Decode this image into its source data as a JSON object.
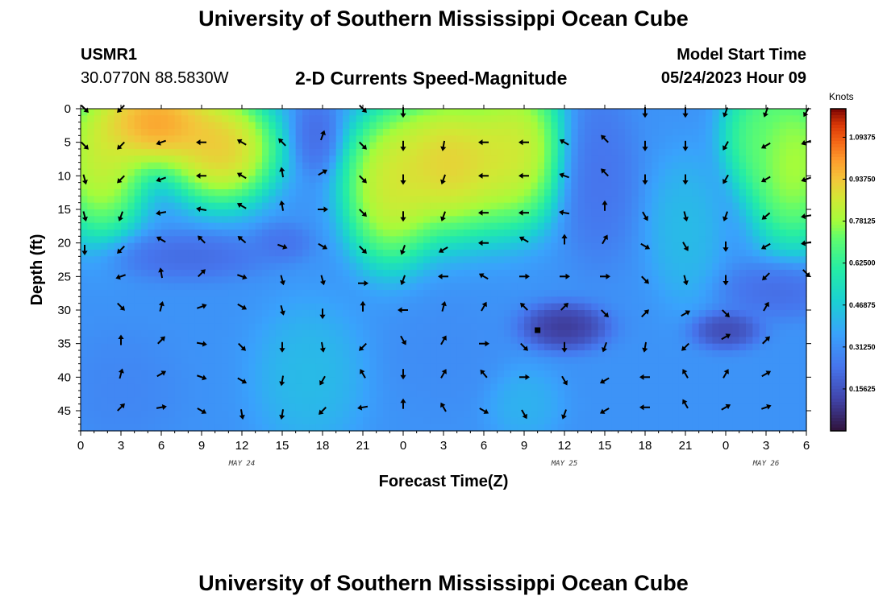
{
  "header": {
    "title": "University of Southern Mississippi Ocean Cube",
    "station_id": "USMR1",
    "station_coords": "30.0770N  88.5830W",
    "product": "2-D Currents Speed-Magnitude",
    "model_start_label": "Model Start Time",
    "model_start_value": "05/24/2023 Hour 09"
  },
  "footer": {
    "title": "University of Southern Mississippi Ocean Cube"
  },
  "chart_data": {
    "type": "heatmap",
    "title": "2-D Currents Speed-Magnitude",
    "xlabel": "Forecast Time(Z)",
    "ylabel": "Depth (ft)",
    "x_tick_labels": [
      "0",
      "3",
      "6",
      "9",
      "12",
      "15",
      "18",
      "21",
      "0",
      "3",
      "6",
      "9",
      "12",
      "15",
      "18",
      "21",
      "0",
      "3",
      "6"
    ],
    "x_hours": [
      0,
      3,
      6,
      9,
      12,
      15,
      18,
      21,
      24,
      27,
      30,
      33,
      36,
      39,
      42,
      45,
      48,
      51,
      54
    ],
    "xlim": [
      0,
      54
    ],
    "date_labels": [
      {
        "text": "MAY 24",
        "hour": 12
      },
      {
        "text": "MAY 25",
        "hour": 36
      },
      {
        "text": "MAY 26",
        "hour": 51
      }
    ],
    "y_ticks": [
      0,
      5,
      10,
      15,
      20,
      25,
      30,
      35,
      40,
      45
    ],
    "ylim": [
      0,
      48
    ],
    "colorbar": {
      "unit": "Knots",
      "min": 0,
      "max": 1.2,
      "tick_values": [
        1.09375,
        0.9375,
        0.78125,
        0.625,
        0.46875,
        0.3125,
        0.15625
      ],
      "tick_labels": [
        "1.09375",
        "0.93750",
        "0.78125",
        "0.62500",
        "0.46875",
        "0.31250",
        "0.15625"
      ]
    },
    "speed_features": [
      {
        "hour": 5.5,
        "depth": 2,
        "value": 1.15,
        "sx": 3.5,
        "sy": 5
      },
      {
        "hour": 1.5,
        "depth": 8,
        "value": 0.95,
        "sx": 2.5,
        "sy": 8
      },
      {
        "hour": 10.5,
        "depth": 6,
        "value": 1.05,
        "sx": 3,
        "sy": 6
      },
      {
        "hour": 27.5,
        "depth": 8,
        "value": 1.05,
        "sx": 4,
        "sy": 8
      },
      {
        "hour": 23.0,
        "depth": 12,
        "value": 0.95,
        "sx": 2.5,
        "sy": 8
      },
      {
        "hour": 32.5,
        "depth": 6,
        "value": 0.95,
        "sx": 2.5,
        "sy": 8
      },
      {
        "hour": 53,
        "depth": 8,
        "value": 0.9,
        "sx": 2.5,
        "sy": 9
      },
      {
        "hour": 50.5,
        "depth": 4,
        "value": 0.75,
        "sx": 2,
        "sy": 6
      },
      {
        "hour": 17.5,
        "depth": 4,
        "value": 0.2,
        "sx": 1.2,
        "sy": 4
      },
      {
        "hour": 38.5,
        "depth": 10,
        "value": 0.22,
        "sx": 2,
        "sy": 9
      },
      {
        "hour": 8,
        "depth": 22,
        "value": 0.2,
        "sx": 4,
        "sy": 2.5
      },
      {
        "hour": 15,
        "depth": 20,
        "value": 0.22,
        "sx": 1.5,
        "sy": 2
      },
      {
        "hour": 36,
        "depth": 32.5,
        "value": 0.05,
        "sx": 2.3,
        "sy": 2.5
      },
      {
        "hour": 48,
        "depth": 33,
        "value": 0.1,
        "sx": 1.8,
        "sy": 2
      },
      {
        "hour": 52,
        "depth": 27,
        "value": 0.2,
        "sx": 3,
        "sy": 3
      },
      {
        "hour": 17,
        "depth": 40,
        "value": 0.45,
        "sx": 3,
        "sy": 8
      },
      {
        "hour": 33,
        "depth": 44,
        "value": 0.42,
        "sx": 2,
        "sy": 4
      },
      {
        "hour": 27,
        "depth": 37,
        "value": 0.3,
        "sx": 3,
        "sy": 6
      },
      {
        "hour": 45,
        "depth": 18,
        "value": 0.45,
        "sx": 2,
        "sy": 8
      },
      {
        "hour": 3,
        "depth": 42,
        "value": 0.28,
        "sx": 3,
        "sy": 6
      }
    ],
    "vectors": [
      {
        "hour": 0.3,
        "depth": 0,
        "dir": 135
      },
      {
        "hour": 3,
        "depth": 0,
        "dir": 225
      },
      {
        "hour": 21,
        "depth": 0,
        "dir": 135
      },
      {
        "hour": 24,
        "depth": 0.5,
        "dir": 180
      },
      {
        "hour": 42,
        "depth": 0.5,
        "dir": 180
      },
      {
        "hour": 45,
        "depth": 0.5,
        "dir": 180
      },
      {
        "hour": 48,
        "depth": 0.5,
        "dir": 200
      },
      {
        "hour": 51,
        "depth": 0.5,
        "dir": 200
      },
      {
        "hour": 54,
        "depth": 0.5,
        "dir": 210
      },
      {
        "hour": 0.3,
        "depth": 5.5,
        "dir": 135
      },
      {
        "hour": 3,
        "depth": 5.5,
        "dir": 225
      },
      {
        "hour": 6,
        "depth": 5,
        "dir": 250
      },
      {
        "hour": 9,
        "depth": 5,
        "dir": 270
      },
      {
        "hour": 12,
        "depth": 5,
        "dir": 300
      },
      {
        "hour": 15,
        "depth": 5,
        "dir": 315
      },
      {
        "hour": 18,
        "depth": 4,
        "dir": 20
      },
      {
        "hour": 21,
        "depth": 5.5,
        "dir": 135
      },
      {
        "hour": 24,
        "depth": 5.5,
        "dir": 180
      },
      {
        "hour": 27,
        "depth": 5.5,
        "dir": 190
      },
      {
        "hour": 30,
        "depth": 5,
        "dir": 270
      },
      {
        "hour": 33,
        "depth": 5,
        "dir": 270
      },
      {
        "hour": 36,
        "depth": 5,
        "dir": 300
      },
      {
        "hour": 39,
        "depth": 4.5,
        "dir": 315
      },
      {
        "hour": 42,
        "depth": 5.5,
        "dir": 180
      },
      {
        "hour": 45,
        "depth": 5.5,
        "dir": 180
      },
      {
        "hour": 48,
        "depth": 5.5,
        "dir": 210
      },
      {
        "hour": 51,
        "depth": 5.5,
        "dir": 240
      },
      {
        "hour": 54,
        "depth": 5,
        "dir": 250
      },
      {
        "hour": 0.3,
        "depth": 10.5,
        "dir": 165
      },
      {
        "hour": 3,
        "depth": 10.5,
        "dir": 225
      },
      {
        "hour": 6,
        "depth": 10.5,
        "dir": 250
      },
      {
        "hour": 9,
        "depth": 10,
        "dir": 270
      },
      {
        "hour": 12,
        "depth": 10,
        "dir": 300
      },
      {
        "hour": 15,
        "depth": 9.5,
        "dir": 350
      },
      {
        "hour": 18,
        "depth": 9.5,
        "dir": 60
      },
      {
        "hour": 21,
        "depth": 10.5,
        "dir": 135
      },
      {
        "hour": 24,
        "depth": 10.5,
        "dir": 180
      },
      {
        "hour": 27,
        "depth": 10.5,
        "dir": 200
      },
      {
        "hour": 30,
        "depth": 10,
        "dir": 270
      },
      {
        "hour": 33,
        "depth": 10,
        "dir": 270
      },
      {
        "hour": 36,
        "depth": 10,
        "dir": 290
      },
      {
        "hour": 39,
        "depth": 9.5,
        "dir": 315
      },
      {
        "hour": 42,
        "depth": 10.5,
        "dir": 180
      },
      {
        "hour": 45,
        "depth": 10.5,
        "dir": 180
      },
      {
        "hour": 48,
        "depth": 10.5,
        "dir": 210
      },
      {
        "hour": 51,
        "depth": 10.5,
        "dir": 240
      },
      {
        "hour": 54,
        "depth": 10.5,
        "dir": 250
      },
      {
        "hour": 0.3,
        "depth": 16,
        "dir": 165
      },
      {
        "hour": 3,
        "depth": 16,
        "dir": 200
      },
      {
        "hour": 6,
        "depth": 15.5,
        "dir": 260
      },
      {
        "hour": 9,
        "depth": 15,
        "dir": 280
      },
      {
        "hour": 12,
        "depth": 14.5,
        "dir": 300
      },
      {
        "hour": 15,
        "depth": 14.5,
        "dir": 350
      },
      {
        "hour": 18,
        "depth": 15,
        "dir": 90
      },
      {
        "hour": 21,
        "depth": 15.5,
        "dir": 135
      },
      {
        "hour": 24,
        "depth": 16,
        "dir": 180
      },
      {
        "hour": 27,
        "depth": 16,
        "dir": 200
      },
      {
        "hour": 30,
        "depth": 15.5,
        "dir": 270
      },
      {
        "hour": 33,
        "depth": 15.5,
        "dir": 270
      },
      {
        "hour": 36,
        "depth": 15.5,
        "dir": 280
      },
      {
        "hour": 39,
        "depth": 14.5,
        "dir": 0
      },
      {
        "hour": 42,
        "depth": 16,
        "dir": 150
      },
      {
        "hour": 45,
        "depth": 16,
        "dir": 165
      },
      {
        "hour": 48,
        "depth": 16,
        "dir": 200
      },
      {
        "hour": 51,
        "depth": 16,
        "dir": 230
      },
      {
        "hour": 54,
        "depth": 16,
        "dir": 260
      },
      {
        "hour": 0.3,
        "depth": 21,
        "dir": 180
      },
      {
        "hour": 3,
        "depth": 21,
        "dir": 225
      },
      {
        "hour": 6,
        "depth": 19.5,
        "dir": 300
      },
      {
        "hour": 9,
        "depth": 19.5,
        "dir": 315
      },
      {
        "hour": 12,
        "depth": 19.5,
        "dir": 310
      },
      {
        "hour": 15,
        "depth": 20.5,
        "dir": 110
      },
      {
        "hour": 18,
        "depth": 20.5,
        "dir": 120
      },
      {
        "hour": 21,
        "depth": 21,
        "dir": 135
      },
      {
        "hour": 24,
        "depth": 21,
        "dir": 200
      },
      {
        "hour": 27,
        "depth": 21,
        "dir": 240
      },
      {
        "hour": 30,
        "depth": 20,
        "dir": 270
      },
      {
        "hour": 33,
        "depth": 19.5,
        "dir": 300
      },
      {
        "hour": 36,
        "depth": 19.5,
        "dir": 0
      },
      {
        "hour": 39,
        "depth": 19.5,
        "dir": 30
      },
      {
        "hour": 42,
        "depth": 20.5,
        "dir": 120
      },
      {
        "hour": 45,
        "depth": 20.5,
        "dir": 150
      },
      {
        "hour": 48,
        "depth": 20.5,
        "dir": 180
      },
      {
        "hour": 51,
        "depth": 20.5,
        "dir": 240
      },
      {
        "hour": 54,
        "depth": 20,
        "dir": 260
      },
      {
        "hour": 3,
        "depth": 25,
        "dir": 250
      },
      {
        "hour": 6,
        "depth": 24.5,
        "dir": 350
      },
      {
        "hour": 9,
        "depth": 24.5,
        "dir": 45
      },
      {
        "hour": 12,
        "depth": 25,
        "dir": 110
      },
      {
        "hour": 15,
        "depth": 25.5,
        "dir": 165
      },
      {
        "hour": 18,
        "depth": 25.5,
        "dir": 165
      },
      {
        "hour": 21,
        "depth": 26,
        "dir": 90
      },
      {
        "hour": 24,
        "depth": 25.5,
        "dir": 200
      },
      {
        "hour": 27,
        "depth": 25,
        "dir": 270
      },
      {
        "hour": 30,
        "depth": 25,
        "dir": 300
      },
      {
        "hour": 33,
        "depth": 25,
        "dir": 90
      },
      {
        "hour": 36,
        "depth": 25,
        "dir": 90
      },
      {
        "hour": 39,
        "depth": 25,
        "dir": 90
      },
      {
        "hour": 42,
        "depth": 25.5,
        "dir": 135
      },
      {
        "hour": 45,
        "depth": 25.5,
        "dir": 165
      },
      {
        "hour": 48,
        "depth": 25.5,
        "dir": 180
      },
      {
        "hour": 51,
        "depth": 25,
        "dir": 225
      },
      {
        "hour": 54,
        "depth": 24.5,
        "dir": 135
      },
      {
        "hour": 3,
        "depth": 29.5,
        "dir": 135
      },
      {
        "hour": 6,
        "depth": 29.5,
        "dir": 15
      },
      {
        "hour": 9,
        "depth": 29.5,
        "dir": 70
      },
      {
        "hour": 12,
        "depth": 29.5,
        "dir": 120
      },
      {
        "hour": 15,
        "depth": 30,
        "dir": 165
      },
      {
        "hour": 18,
        "depth": 30.5,
        "dir": 180
      },
      {
        "hour": 21,
        "depth": 29.5,
        "dir": 0
      },
      {
        "hour": 24,
        "depth": 30,
        "dir": 270
      },
      {
        "hour": 27,
        "depth": 29.5,
        "dir": 15
      },
      {
        "hour": 30,
        "depth": 29.5,
        "dir": 30
      },
      {
        "hour": 33,
        "depth": 29.5,
        "dir": 315
      },
      {
        "hour": 36,
        "depth": 29.5,
        "dir": 45
      },
      {
        "hour": 39,
        "depth": 30.5,
        "dir": 135
      },
      {
        "hour": 42,
        "depth": 30.5,
        "dir": 45
      },
      {
        "hour": 45,
        "depth": 30.5,
        "dir": 60
      },
      {
        "hour": 48,
        "depth": 30.5,
        "dir": 135
      },
      {
        "hour": 51,
        "depth": 29.5,
        "dir": 30
      },
      {
        "hour": 3,
        "depth": 34.5,
        "dir": 0
      },
      {
        "hour": 6,
        "depth": 34.5,
        "dir": 45
      },
      {
        "hour": 9,
        "depth": 35,
        "dir": 100
      },
      {
        "hour": 12,
        "depth": 35.5,
        "dir": 135
      },
      {
        "hour": 15,
        "depth": 35.5,
        "dir": 180
      },
      {
        "hour": 18,
        "depth": 35.5,
        "dir": 170
      },
      {
        "hour": 21,
        "depth": 35.5,
        "dir": 225
      },
      {
        "hour": 24,
        "depth": 34.5,
        "dir": 150
      },
      {
        "hour": 27,
        "depth": 34.5,
        "dir": 30
      },
      {
        "hour": 30,
        "depth": 35,
        "dir": 90
      },
      {
        "hour": 33,
        "depth": 35.5,
        "dir": 135
      },
      {
        "hour": 36,
        "depth": 35.5,
        "dir": 180
      },
      {
        "hour": 39,
        "depth": 35.5,
        "dir": 200
      },
      {
        "hour": 42,
        "depth": 35.5,
        "dir": 190
      },
      {
        "hour": 45,
        "depth": 35.5,
        "dir": 225
      },
      {
        "hour": 48,
        "depth": 34,
        "dir": 60
      },
      {
        "hour": 51,
        "depth": 34.5,
        "dir": 45
      },
      {
        "hour": 3,
        "depth": 39.5,
        "dir": 15
      },
      {
        "hour": 6,
        "depth": 39.5,
        "dir": 60
      },
      {
        "hour": 9,
        "depth": 40,
        "dir": 110
      },
      {
        "hour": 12,
        "depth": 40.5,
        "dir": 120
      },
      {
        "hour": 15,
        "depth": 40.5,
        "dir": 190
      },
      {
        "hour": 18,
        "depth": 40.5,
        "dir": 210
      },
      {
        "hour": 21,
        "depth": 39.5,
        "dir": 330
      },
      {
        "hour": 24,
        "depth": 39.5,
        "dir": 180
      },
      {
        "hour": 27,
        "depth": 39.5,
        "dir": 30
      },
      {
        "hour": 30,
        "depth": 39.5,
        "dir": 320
      },
      {
        "hour": 33,
        "depth": 40,
        "dir": 90
      },
      {
        "hour": 36,
        "depth": 40.5,
        "dir": 150
      },
      {
        "hour": 39,
        "depth": 40.5,
        "dir": 240
      },
      {
        "hour": 42,
        "depth": 40,
        "dir": 270
      },
      {
        "hour": 45,
        "depth": 39.5,
        "dir": 330
      },
      {
        "hour": 48,
        "depth": 39.5,
        "dir": 30
      },
      {
        "hour": 51,
        "depth": 39.5,
        "dir": 60
      },
      {
        "hour": 3,
        "depth": 44.5,
        "dir": 45
      },
      {
        "hour": 6,
        "depth": 44.5,
        "dir": 80
      },
      {
        "hour": 9,
        "depth": 45,
        "dir": 120
      },
      {
        "hour": 12,
        "depth": 45.5,
        "dir": 170
      },
      {
        "hour": 15,
        "depth": 45.5,
        "dir": 190
      },
      {
        "hour": 18,
        "depth": 45,
        "dir": 225
      },
      {
        "hour": 21,
        "depth": 44.5,
        "dir": 260
      },
      {
        "hour": 24,
        "depth": 44,
        "dir": 0
      },
      {
        "hour": 27,
        "depth": 44.5,
        "dir": 330
      },
      {
        "hour": 30,
        "depth": 45,
        "dir": 120
      },
      {
        "hour": 33,
        "depth": 45.5,
        "dir": 150
      },
      {
        "hour": 36,
        "depth": 45.5,
        "dir": 200
      },
      {
        "hour": 39,
        "depth": 45,
        "dir": 240
      },
      {
        "hour": 42,
        "depth": 44.5,
        "dir": 270
      },
      {
        "hour": 45,
        "depth": 44,
        "dir": 330
      },
      {
        "hour": 48,
        "depth": 44.5,
        "dir": 60
      },
      {
        "hour": 51,
        "depth": 44.5,
        "dir": 70
      }
    ],
    "station_marker": {
      "hour": 34,
      "depth": 33
    }
  }
}
